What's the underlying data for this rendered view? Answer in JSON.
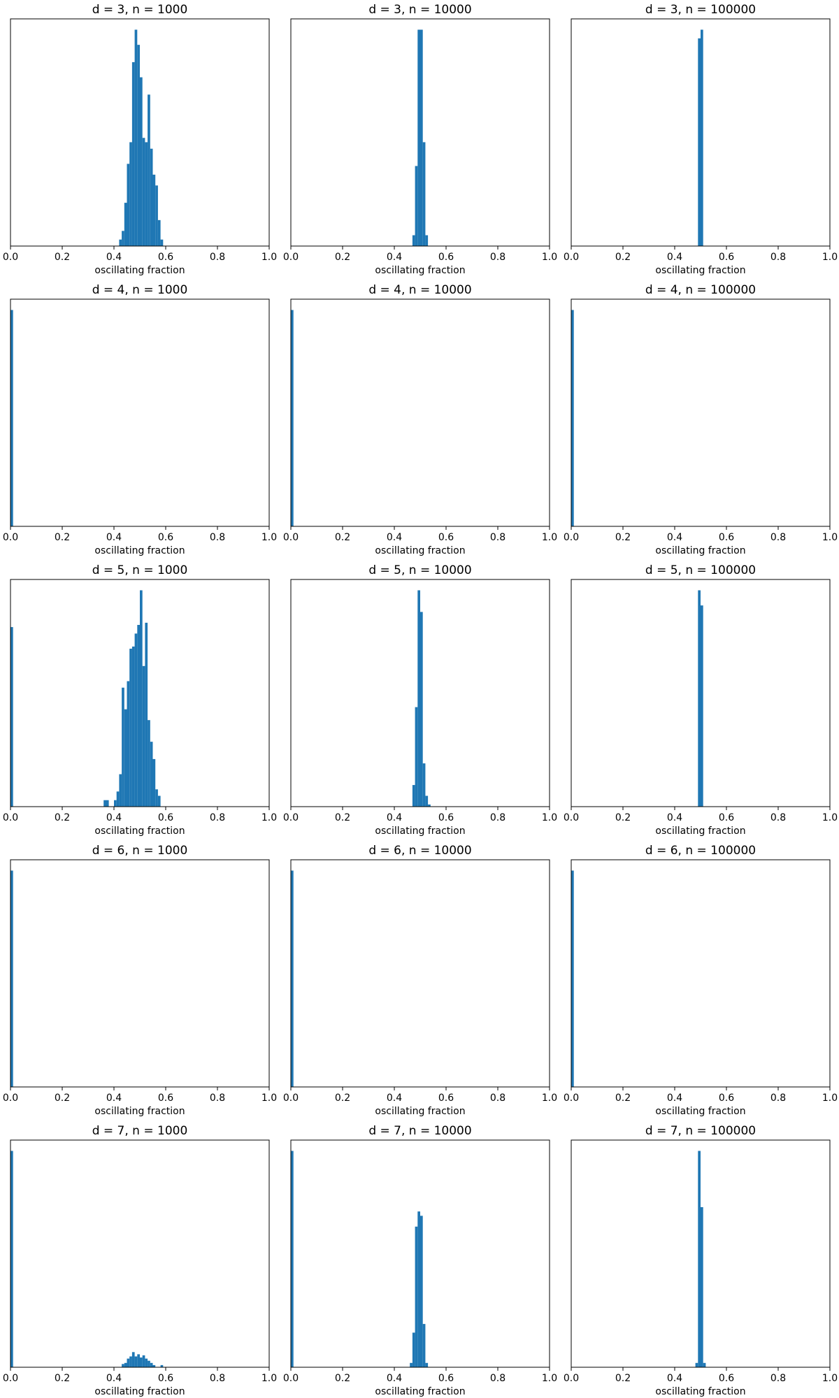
{
  "bar_color": "#1f77b4",
  "chart_data": [
    {
      "type": "bar",
      "title": "d = 3, n = 1000",
      "xlabel": "oscillating fraction",
      "xlim": [
        0,
        1
      ],
      "xticks": [
        "0.0",
        "0.2",
        "0.4",
        "0.6",
        "0.8",
        "1.0"
      ],
      "ylim": [
        0,
        1.05
      ],
      "bins": [
        [
          0.42,
          0.43,
          0.03
        ],
        [
          0.43,
          0.44,
          0.07
        ],
        [
          0.44,
          0.45,
          0.2
        ],
        [
          0.45,
          0.46,
          0.38
        ],
        [
          0.46,
          0.47,
          0.48
        ],
        [
          0.47,
          0.48,
          0.85
        ],
        [
          0.48,
          0.49,
          1.0
        ],
        [
          0.49,
          0.5,
          0.93
        ],
        [
          0.5,
          0.51,
          0.78
        ],
        [
          0.51,
          0.52,
          0.5
        ],
        [
          0.52,
          0.53,
          0.48
        ],
        [
          0.53,
          0.54,
          0.7
        ],
        [
          0.54,
          0.55,
          0.45
        ],
        [
          0.55,
          0.56,
          0.33
        ],
        [
          0.56,
          0.57,
          0.28
        ],
        [
          0.57,
          0.58,
          0.12
        ],
        [
          0.58,
          0.59,
          0.03
        ]
      ]
    },
    {
      "type": "bar",
      "title": "d = 3, n = 10000",
      "xlabel": "oscillating fraction",
      "xlim": [
        0,
        1
      ],
      "xticks": [
        "0.0",
        "0.2",
        "0.4",
        "0.6",
        "0.8",
        "1.0"
      ],
      "ylim": [
        0,
        1.05
      ],
      "bins": [
        [
          0.47,
          0.48,
          0.05
        ],
        [
          0.48,
          0.49,
          0.37
        ],
        [
          0.49,
          0.5,
          1.0
        ],
        [
          0.5,
          0.51,
          1.0
        ],
        [
          0.51,
          0.52,
          0.48
        ],
        [
          0.52,
          0.53,
          0.05
        ]
      ]
    },
    {
      "type": "bar",
      "title": "d = 3, n = 100000",
      "xlabel": "oscillating fraction",
      "xlim": [
        0,
        1
      ],
      "xticks": [
        "0.0",
        "0.2",
        "0.4",
        "0.6",
        "0.8",
        "1.0"
      ],
      "ylim": [
        0,
        1.05
      ],
      "bins": [
        [
          0.49,
          0.5,
          0.96
        ],
        [
          0.5,
          0.51,
          1.0
        ]
      ]
    },
    {
      "type": "bar",
      "title": "d = 4, n = 1000",
      "xlabel": "oscillating fraction",
      "xlim": [
        0,
        1
      ],
      "xticks": [
        "0.0",
        "0.2",
        "0.4",
        "0.6",
        "0.8",
        "1.0"
      ],
      "ylim": [
        0,
        1.05
      ],
      "bins": [
        [
          0,
          0.01,
          1.0
        ]
      ]
    },
    {
      "type": "bar",
      "title": "d = 4, n = 10000",
      "xlabel": "oscillating fraction",
      "xlim": [
        0,
        1
      ],
      "xticks": [
        "0.0",
        "0.2",
        "0.4",
        "0.6",
        "0.8",
        "1.0"
      ],
      "ylim": [
        0,
        1.05
      ],
      "bins": [
        [
          0,
          0.01,
          1.0
        ]
      ]
    },
    {
      "type": "bar",
      "title": "d = 4, n = 100000",
      "xlabel": "oscillating fraction",
      "xlim": [
        0,
        1
      ],
      "xticks": [
        "0.0",
        "0.2",
        "0.4",
        "0.6",
        "0.8",
        "1.0"
      ],
      "ylim": [
        0,
        1.05
      ],
      "bins": [
        [
          0,
          0.01,
          1.0
        ]
      ]
    },
    {
      "type": "bar",
      "title": "d = 5, n = 1000",
      "xlabel": "oscillating fraction",
      "xlim": [
        0,
        1
      ],
      "xticks": [
        "0.0",
        "0.2",
        "0.4",
        "0.6",
        "0.8",
        "1.0"
      ],
      "ylim": [
        0,
        1.05
      ],
      "bins": [
        [
          0,
          0.01,
          0.83
        ],
        [
          0.36,
          0.38,
          0.03
        ],
        [
          0.4,
          0.41,
          0.03
        ],
        [
          0.41,
          0.42,
          0.07
        ],
        [
          0.42,
          0.43,
          0.15
        ],
        [
          0.43,
          0.44,
          0.55
        ],
        [
          0.44,
          0.45,
          0.45
        ],
        [
          0.45,
          0.46,
          0.58
        ],
        [
          0.46,
          0.47,
          0.73
        ],
        [
          0.47,
          0.48,
          0.74
        ],
        [
          0.48,
          0.49,
          0.8
        ],
        [
          0.49,
          0.5,
          0.84
        ],
        [
          0.5,
          0.51,
          1.0
        ],
        [
          0.51,
          0.52,
          0.65
        ],
        [
          0.52,
          0.53,
          0.85
        ],
        [
          0.53,
          0.54,
          0.4
        ],
        [
          0.54,
          0.55,
          0.3
        ],
        [
          0.55,
          0.56,
          0.22
        ],
        [
          0.56,
          0.57,
          0.08
        ],
        [
          0.57,
          0.58,
          0.05
        ]
      ]
    },
    {
      "type": "bar",
      "title": "d = 5, n = 10000",
      "xlabel": "oscillating fraction",
      "xlim": [
        0,
        1
      ],
      "xticks": [
        "0.0",
        "0.2",
        "0.4",
        "0.6",
        "0.8",
        "1.0"
      ],
      "ylim": [
        0,
        1.05
      ],
      "bins": [
        [
          0.47,
          0.48,
          0.1
        ],
        [
          0.48,
          0.49,
          0.46
        ],
        [
          0.49,
          0.5,
          1.0
        ],
        [
          0.5,
          0.51,
          0.9
        ],
        [
          0.51,
          0.52,
          0.2
        ],
        [
          0.52,
          0.53,
          0.05
        ],
        [
          0.53,
          0.54,
          0.01
        ]
      ]
    },
    {
      "type": "bar",
      "title": "d = 5, n = 100000",
      "xlabel": "oscillating fraction",
      "xlim": [
        0,
        1
      ],
      "xticks": [
        "0.0",
        "0.2",
        "0.4",
        "0.6",
        "0.8",
        "1.0"
      ],
      "ylim": [
        0,
        1.05
      ],
      "bins": [
        [
          0.49,
          0.5,
          1.0
        ],
        [
          0.5,
          0.51,
          0.93
        ]
      ]
    },
    {
      "type": "bar",
      "title": "d = 6, n = 1000",
      "xlabel": "oscillating fraction",
      "xlim": [
        0,
        1
      ],
      "xticks": [
        "0.0",
        "0.2",
        "0.4",
        "0.6",
        "0.8",
        "1.0"
      ],
      "ylim": [
        0,
        1.05
      ],
      "bins": [
        [
          0,
          0.01,
          1.0
        ]
      ]
    },
    {
      "type": "bar",
      "title": "d = 6, n = 10000",
      "xlabel": "oscillating fraction",
      "xlim": [
        0,
        1
      ],
      "xticks": [
        "0.0",
        "0.2",
        "0.4",
        "0.6",
        "0.8",
        "1.0"
      ],
      "ylim": [
        0,
        1.05
      ],
      "bins": [
        [
          0,
          0.01,
          1.0
        ]
      ]
    },
    {
      "type": "bar",
      "title": "d = 6, n = 100000",
      "xlabel": "oscillating fraction",
      "xlim": [
        0,
        1
      ],
      "xticks": [
        "0.0",
        "0.2",
        "0.4",
        "0.6",
        "0.8",
        "1.0"
      ],
      "ylim": [
        0,
        1.05
      ],
      "bins": [
        [
          0,
          0.01,
          1.0
        ]
      ]
    },
    {
      "type": "bar",
      "title": "d = 7, n = 1000",
      "xlabel": "oscillating fraction",
      "xlim": [
        0,
        1
      ],
      "xticks": [
        "0.0",
        "0.2",
        "0.4",
        "0.6",
        "0.8",
        "1.0"
      ],
      "ylim": [
        0,
        1.05
      ],
      "bins": [
        [
          0,
          0.01,
          1.0
        ],
        [
          0.43,
          0.44,
          0.015
        ],
        [
          0.44,
          0.45,
          0.02
        ],
        [
          0.45,
          0.46,
          0.04
        ],
        [
          0.46,
          0.47,
          0.05
        ],
        [
          0.47,
          0.48,
          0.07
        ],
        [
          0.48,
          0.49,
          0.05
        ],
        [
          0.49,
          0.5,
          0.06
        ],
        [
          0.5,
          0.51,
          0.045
        ],
        [
          0.51,
          0.52,
          0.055
        ],
        [
          0.52,
          0.53,
          0.04
        ],
        [
          0.53,
          0.54,
          0.03
        ],
        [
          0.54,
          0.55,
          0.02
        ],
        [
          0.55,
          0.56,
          0.01
        ],
        [
          0.58,
          0.59,
          0.01
        ]
      ]
    },
    {
      "type": "bar",
      "title": "d = 7, n = 10000",
      "xlabel": "oscillating fraction",
      "xlim": [
        0,
        1
      ],
      "xticks": [
        "0.0",
        "0.2",
        "0.4",
        "0.6",
        "0.8",
        "1.0"
      ],
      "ylim": [
        0,
        1.05
      ],
      "bins": [
        [
          0,
          0.01,
          1.0
        ],
        [
          0.46,
          0.47,
          0.02
        ],
        [
          0.47,
          0.48,
          0.16
        ],
        [
          0.48,
          0.49,
          0.65
        ],
        [
          0.49,
          0.5,
          0.72
        ],
        [
          0.5,
          0.51,
          0.7
        ],
        [
          0.51,
          0.52,
          0.2
        ],
        [
          0.52,
          0.53,
          0.02
        ]
      ]
    },
    {
      "type": "bar",
      "title": "d = 7, n = 100000",
      "xlabel": "oscillating fraction",
      "xlim": [
        0,
        1
      ],
      "xticks": [
        "0.0",
        "0.2",
        "0.4",
        "0.6",
        "0.8",
        "1.0"
      ],
      "ylim": [
        0,
        1.05
      ],
      "bins": [
        [
          0.48,
          0.49,
          0.02
        ],
        [
          0.49,
          0.5,
          1.0
        ],
        [
          0.5,
          0.51,
          0.74
        ],
        [
          0.51,
          0.52,
          0.02
        ]
      ]
    }
  ]
}
